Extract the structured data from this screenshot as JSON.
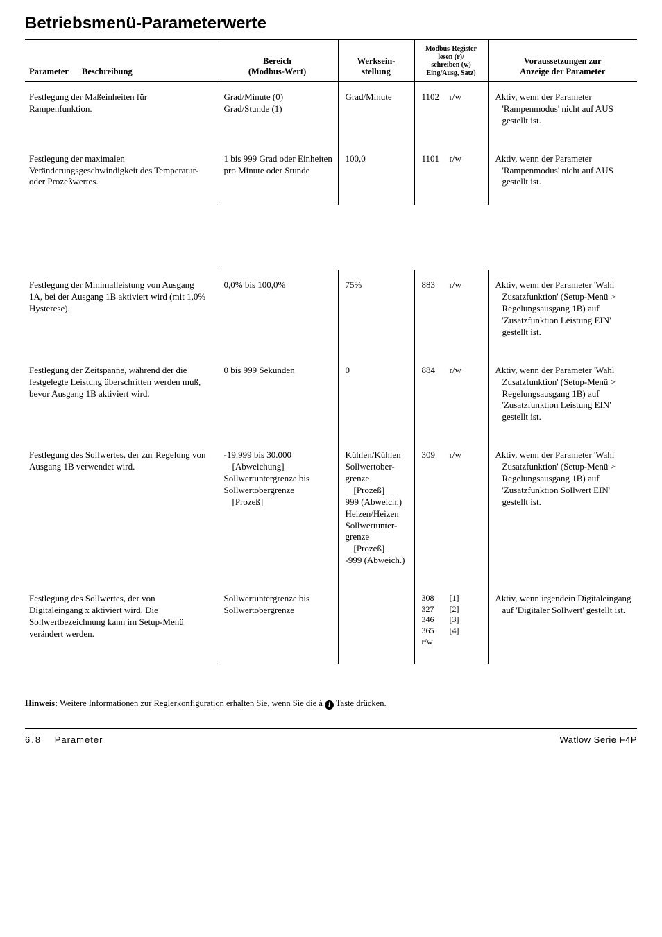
{
  "title": "Betriebsmenü-Parameterwerte",
  "columns": {
    "param": "Parameter",
    "desc": "Beschreibung",
    "range": "Bereich\n(Modbus-Wert)",
    "factory": "Werksein-\nstellung",
    "modbus": "Modbus-Register\nlesen (r)/\nschreiben (w)\nEing/Ausg, Satz)",
    "cond": "Voraussetzungen zur\nAnzeige der Parameter"
  },
  "rows": [
    {
      "desc": "Festlegung der Maßeinheiten für Rampenfunktion.",
      "range": "Grad/Minute (0)\nGrad/Stunde (1)",
      "factory": "Grad/Minute",
      "modbus": "1102  r/w",
      "cond": "Aktiv, wenn der Parameter 'Rampenmodus' nicht auf AUS gestellt ist."
    },
    {
      "desc": "Festlegung der maximalen Veränderungsgeschwindigkeit des Temperatur- oder Prozeßwertes.",
      "range": "1 bis 999 Grad oder Einheiten pro Minute oder Stunde",
      "factory": "100,0",
      "modbus": "1101  r/w",
      "cond": "Aktiv, wenn der Parameter 'Rampenmodus' nicht auf AUS gestellt ist."
    },
    {
      "desc": "Festlegung der Minimalleistung von Ausgang 1A, bei der Ausgang 1B aktiviert wird (mit 1,0% Hysterese).",
      "range": "0,0% bis 100,0%",
      "factory": "75%",
      "modbus": "883    r/w",
      "cond": "Aktiv, wenn der Parameter 'Wahl Zusatzfunktion' (Setup-Menü > Regelungsausgang 1B) auf 'Zusatzfunktion Leistung EIN' gestellt ist."
    },
    {
      "desc": "Festlegung der Zeitspanne, während der die festgelegte Leistung überschritten werden muß, bevor Ausgang 1B aktiviert wird.",
      "range": "0 bis 999 Sekunden",
      "factory": "0",
      "modbus": "884    r/w",
      "cond": "Aktiv, wenn der Parameter 'Wahl Zusatzfunktion' (Setup-Menü > Regelungsausgang 1B) auf 'Zusatzfunktion Leistung EIN' gestellt ist."
    },
    {
      "desc": "Festlegung des Sollwertes, der zur Regelung von Ausgang 1B verwendet wird.",
      "range": "-19.999 bis 30.000\n  [Abweichung]\nSollwertuntergrenze bis Sollwertobergrenze\n  [Prozeß]",
      "factory": "Kühlen/Kühlen\nSollwertober-grenze\n  [Prozeß]\n999 (Abweich.)\nHeizen/Heizen\nSollwertunter-grenze\n  [Prozeß]\n-999 (Abweich.)",
      "modbus": "309    r/w",
      "cond": "Aktiv, wenn der Parameter 'Wahl Zusatzfunktion' (Setup-Menü > Regelungsausgang 1B) auf 'Zusatzfunktion Sollwert EIN' gestellt ist."
    },
    {
      "desc": "Festlegung des Sollwertes, der von Digitaleingang x aktiviert wird. Die Sollwertbezeichnung kann im Setup-Menü verändert werden.",
      "range": "Sollwertuntergrenze bis Sollwertobergrenze",
      "factory": "",
      "modbus_pairs": [
        [
          "308",
          "[1]"
        ],
        [
          "327",
          "[2]"
        ],
        [
          "346",
          "[3]"
        ],
        [
          "365",
          "[4]"
        ],
        [
          "r/w",
          ""
        ]
      ],
      "cond": "Aktiv, wenn irgendein Digitaleingang auf 'Digitaler Sollwert' gestellt ist."
    }
  ],
  "note_label": "Hinweis:",
  "note_before": " Weitere Informationen zur Reglerkonfiguration erhalten Sie, wenn Sie die à ",
  "note_after": " Taste drücken.",
  "info_glyph": "i",
  "footer": {
    "page_num": "6.8",
    "left_text": "Parameter",
    "right_text": "Watlow Serie F4P"
  }
}
